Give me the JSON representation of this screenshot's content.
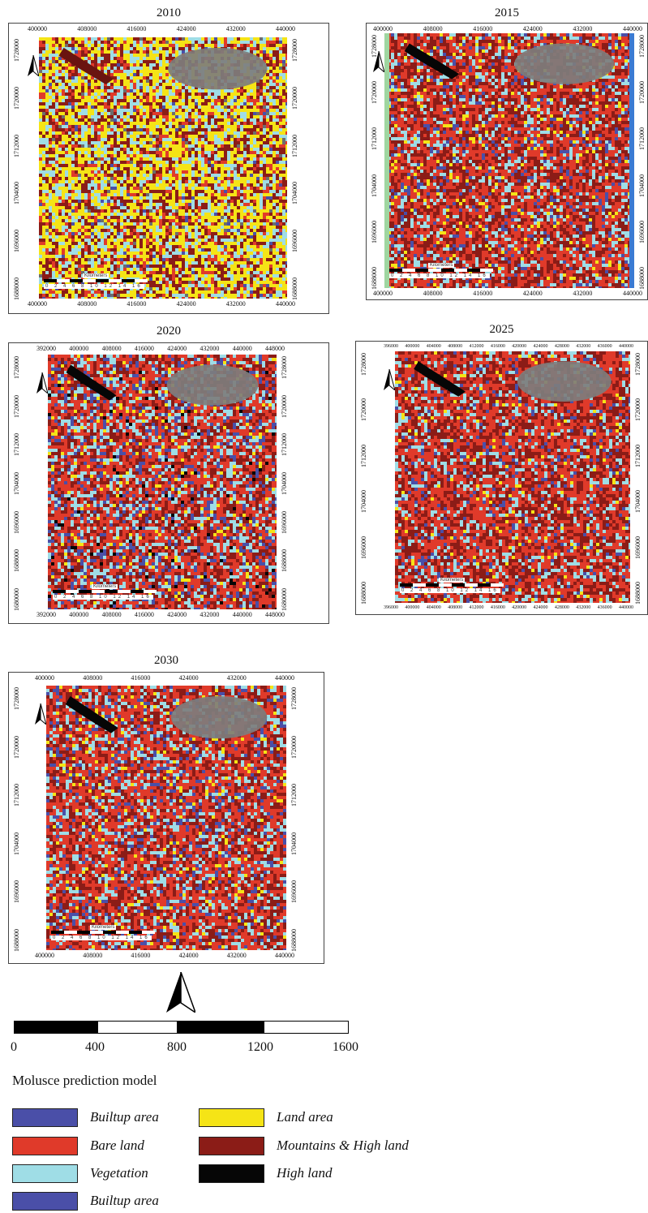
{
  "figure": {
    "panels": [
      {
        "year": "2010",
        "xticks": [
          "400000",
          "408000",
          "416000",
          "424000",
          "432000",
          "440000"
        ],
        "yticks": [
          "1728000",
          "1720000",
          "1712000",
          "1704000",
          "1696000",
          "1688000"
        ],
        "scale_label": "Kilometers",
        "scale_numbers": "0 2 4 6 8 10 12 14 16"
      },
      {
        "year": "2015",
        "xticks": [
          "400000",
          "408000",
          "416000",
          "424000",
          "432000",
          "440000"
        ],
        "yticks": [
          "1728000",
          "1720000",
          "1712000",
          "1704000",
          "1696000",
          "1688000"
        ],
        "scale_label": "Kilometers",
        "scale_numbers": "0 2 4 6 8 10 12 14 16"
      },
      {
        "year": "2020",
        "xticks_top": [
          "392000",
          "400000",
          "408000",
          "416000",
          "424000",
          "432000",
          "440000",
          "448000"
        ],
        "xticks_bottom": [
          "392000",
          "400000",
          "408000",
          "416000",
          "424000",
          "432000",
          "440000",
          "448000"
        ],
        "yticks": [
          "1728000",
          "1720000",
          "1712000",
          "1704000",
          "1696000",
          "1688000",
          "1680000"
        ],
        "scale_label": "Kilometers",
        "scale_numbers": "0 2 4 6 8 10 12 14 16"
      },
      {
        "year": "2025",
        "xticks": [
          "396000",
          "400000",
          "404000",
          "408000",
          "412000",
          "416000",
          "420000",
          "424000",
          "428000",
          "432000",
          "436000",
          "440000"
        ],
        "yticks": [
          "1728000",
          "1720000",
          "1712000",
          "1704000",
          "1696000",
          "1688000"
        ],
        "scale_label": "Kilometers",
        "scale_numbers": "0 2 4 6 8 10 12 14 16"
      },
      {
        "year": "2030",
        "xticks": [
          "400000",
          "408000",
          "416000",
          "424000",
          "432000",
          "440000"
        ],
        "yticks": [
          "1728000",
          "1720000",
          "1712000",
          "1704000",
          "1696000",
          "1688000"
        ],
        "scale_label": "Kilometers",
        "scale_numbers": "0 2 4 6 8 10 12 14 16"
      }
    ],
    "scale_bar": {
      "labels": [
        "0",
        "400",
        "800",
        "1200",
        "1600"
      ]
    },
    "legend": {
      "title": "Molusce prediction model",
      "items": [
        {
          "label": "Builtup area",
          "color": "#4a4fa8"
        },
        {
          "label": "Bare land",
          "color": "#e03a2a"
        },
        {
          "label": "Vegetation",
          "color": "#9fdde6"
        },
        {
          "label": "Builtup area",
          "color": "#4a4fa8"
        },
        {
          "label": "Land area",
          "color": "#f5e416"
        },
        {
          "label": "Mountains & High land",
          "color": "#8b1c17"
        },
        {
          "label": "High land",
          "color": "#060606"
        }
      ]
    }
  }
}
